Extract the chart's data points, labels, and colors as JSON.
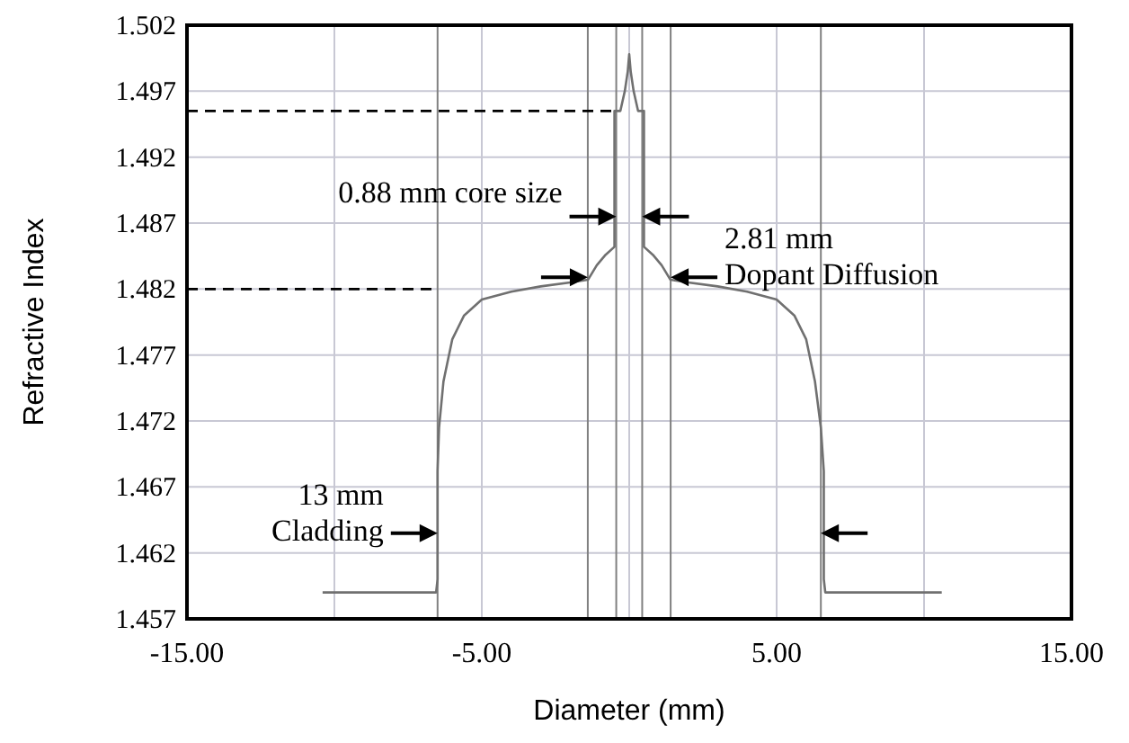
{
  "chart_data": {
    "type": "line",
    "xlabel": "Diameter (mm)",
    "ylabel": "Refractive Index",
    "xlim": [
      -15,
      15
    ],
    "xticks": [
      {
        "value": -15,
        "label": "-15.00"
      },
      {
        "value": -10,
        "label": null
      },
      {
        "value": -5,
        "label": "-5.00"
      },
      {
        "value": 0,
        "label": null
      },
      {
        "value": 5,
        "label": "5.00"
      },
      {
        "value": 10,
        "label": null
      },
      {
        "value": 15,
        "label": "15.00"
      }
    ],
    "ylim": [
      1.457,
      1.502
    ],
    "yticks": [
      1.457,
      1.462,
      1.467,
      1.472,
      1.477,
      1.482,
      1.487,
      1.492,
      1.497,
      1.502
    ],
    "grid": true,
    "series": [
      {
        "color": "#707070",
        "line_style": "solid",
        "x": [
          -10.4,
          -6.55,
          -6.5,
          -6.5,
          -6.45,
          -6.3,
          -6.0,
          -5.6,
          -5.0,
          -4.0,
          -3.0,
          -2.0,
          -1.4,
          -1.1,
          -0.8,
          -0.5,
          -0.5,
          -0.3,
          -0.15,
          -0.05,
          0,
          0.05,
          0.15,
          0.3,
          0.5,
          0.5,
          0.8,
          1.1,
          1.4,
          2.0,
          3.0,
          4.0,
          5.0,
          5.6,
          6.0,
          6.3,
          6.5,
          6.6,
          6.6,
          6.65,
          10.6
        ],
        "values": [
          1.459,
          1.459,
          1.46,
          1.4682,
          1.4715,
          1.475,
          1.4782,
          1.48,
          1.4812,
          1.4818,
          1.4822,
          1.4825,
          1.4827,
          1.4838,
          1.4846,
          1.4852,
          1.4955,
          1.4955,
          1.497,
          1.4985,
          1.4998,
          1.4985,
          1.497,
          1.4955,
          1.4955,
          1.4852,
          1.4846,
          1.4838,
          1.4827,
          1.4825,
          1.4822,
          1.4818,
          1.4812,
          1.48,
          1.4782,
          1.475,
          1.4715,
          1.4682,
          1.46,
          1.459,
          1.459
        ]
      },
      {
        "color": "#000000",
        "line_style": "dashed",
        "x": [
          -15,
          -0.5
        ],
        "values": [
          1.4955,
          1.4955
        ]
      },
      {
        "color": "#000000",
        "line_style": "dashed",
        "x": [
          -15,
          -6.5
        ],
        "values": [
          1.482,
          1.482
        ]
      }
    ],
    "ref_lines": [
      {
        "axis": "x",
        "value": -6.5,
        "color": "#808080"
      },
      {
        "axis": "x",
        "value": -1.405,
        "color": "#808080"
      },
      {
        "axis": "x",
        "value": -0.44,
        "color": "#808080"
      },
      {
        "axis": "x",
        "value": 0.44,
        "color": "#808080"
      },
      {
        "axis": "x",
        "value": 1.405,
        "color": "#808080"
      },
      {
        "axis": "x",
        "value": 6.5,
        "color": "#808080"
      }
    ],
    "annotations": [
      {
        "text": "0.88 mm core size",
        "x": -0.44,
        "y": 1.4875
      },
      {
        "text": "2.81 mm\nDopant Diffusion",
        "x": 1.405,
        "y": 1.4829
      },
      {
        "text": "13 mm\nCladding",
        "x": -6.5,
        "y": 1.4635
      }
    ]
  }
}
